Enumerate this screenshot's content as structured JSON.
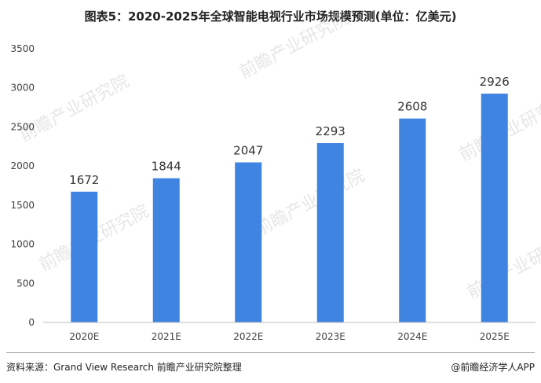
{
  "title": "图表5：2020-2025年全球智能电视行业市场规模预测(单位：亿美元)",
  "watermark_text": "前瞻产业研究院",
  "footer": {
    "source": "资料来源：Grand View Research 前瞻产业研究院整理",
    "copyright": "@前瞻经济学人APP"
  },
  "colors": {
    "bar": "#3f84e0",
    "axis": "#bfbfbf",
    "text": "#404040"
  },
  "chart_data": {
    "type": "bar",
    "categories": [
      "2020E",
      "2021E",
      "2022E",
      "2023E",
      "2024E",
      "2025E"
    ],
    "values": [
      1672,
      1844,
      2047,
      2293,
      2608,
      2926
    ],
    "ylim": [
      0,
      3500
    ],
    "yticks": [
      0,
      500,
      1000,
      1500,
      2000,
      2500,
      3000,
      3500
    ],
    "grid": false,
    "legend": "none",
    "xlabel": "",
    "ylabel": ""
  }
}
